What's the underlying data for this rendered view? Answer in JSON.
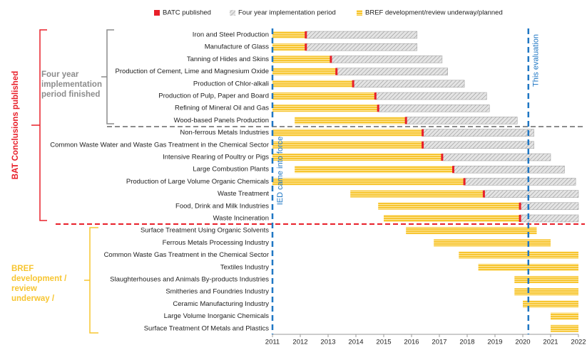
{
  "chart_data": {
    "type": "gantt",
    "legend": [
      {
        "name": "BATC published",
        "color": "#e8202a"
      },
      {
        "name": "Four year implementation period",
        "color": "#b3b3b3"
      },
      {
        "name": "BREF development/review underway/planned",
        "color": "#f7c530"
      }
    ],
    "groups": [
      {
        "label": "BAT Conclusions published",
        "color": "#e8202a"
      },
      {
        "label": [
          "Four year",
          "implementation",
          "period finished"
        ],
        "color": "#8c8c8c"
      },
      {
        "label": [
          "BREF",
          "development /",
          "review",
          "underway /"
        ],
        "color": "#f7c530"
      }
    ],
    "tasks": [
      {
        "name": "Iron and Steel Production",
        "start": 2011,
        "batc": 2012.2,
        "end": 2016.2
      },
      {
        "name": "Manufacture of Glass",
        "start": 2011,
        "batc": 2012.2,
        "end": 2016.2
      },
      {
        "name": "Tanning of Hides and Skins",
        "start": 2011,
        "batc": 2013.1,
        "end": 2017.1
      },
      {
        "name": "Production of Cement, Lime and Magnesium Oxide",
        "start": 2011,
        "batc": 2013.3,
        "end": 2017.3
      },
      {
        "name": "Production of Chlor-alkali",
        "start": 2011,
        "batc": 2013.9,
        "end": 2017.9
      },
      {
        "name": "Production of Pulp, Paper and Board",
        "start": 2011,
        "batc": 2014.7,
        "end": 2018.7
      },
      {
        "name": "Refining of Mineral Oil and Gas",
        "start": 2011,
        "batc": 2014.8,
        "end": 2018.8
      },
      {
        "name": "Wood-based Panels Production",
        "start": 2011.8,
        "batc": 2015.8,
        "end": 2019.8
      },
      {
        "name": "Non-ferrous Metals Industries",
        "start": 2011,
        "batc": 2016.4,
        "end": 2020.4
      },
      {
        "name": "Common Waste Water and Waste Gas Treatment in the Chemical Sector",
        "start": 2011,
        "batc": 2016.4,
        "end": 2020.4
      },
      {
        "name": "Intensive Rearing of Poultry or Pigs",
        "start": 2011,
        "batc": 2017.1,
        "end": 2021
      },
      {
        "name": "Large Combustion Plants",
        "start": 2011.8,
        "batc": 2017.5,
        "end": 2021.5
      },
      {
        "name": "Production of Large Volume Organic Chemicals",
        "start": 2011,
        "batc": 2017.9,
        "end": 2021.9
      },
      {
        "name": "Waste Treatment",
        "start": 2013.8,
        "batc": 2018.6,
        "end": 2022
      },
      {
        "name": "Food, Drink and Milk Industries",
        "start": 2014.8,
        "batc": 2019.9,
        "end": 2022
      },
      {
        "name": "Waste Incineration",
        "start": 2015,
        "batc": 2019.9,
        "end": 2022
      },
      {
        "name": "Surface Treatment Using Organic Solvents",
        "start": 2015.8,
        "batc": null,
        "end": 2020.5
      },
      {
        "name": "Ferrous Metals Processing Industry",
        "start": 2016.8,
        "batc": null,
        "end": 2021
      },
      {
        "name": "Common Waste Gas Treatment in the Chemical Sector",
        "start": 2017.7,
        "batc": null,
        "end": 2022
      },
      {
        "name": "Textiles Industry",
        "start": 2018.4,
        "batc": null,
        "end": 2022
      },
      {
        "name": "Slaughterhouses and Animals By-products Industries",
        "start": 2019.7,
        "batc": null,
        "end": 2022
      },
      {
        "name": "Smitheries and Foundries Industry",
        "start": 2019.7,
        "batc": null,
        "end": 2022
      },
      {
        "name": "Ceramic Manufacturing Industry",
        "start": 2020,
        "batc": null,
        "end": 2022
      },
      {
        "name": "Large Volume Inorganic Chemicals",
        "start": 2021,
        "batc": null,
        "end": 2022
      },
      {
        "name": "Surface Treatment Of Metals and Plastics",
        "start": 2021,
        "batc": null,
        "end": 2022
      }
    ],
    "reference_lines": [
      {
        "x": 2011,
        "label": "IED came into force"
      },
      {
        "x": 2020.2,
        "label": "This evaluation"
      }
    ],
    "reference_color": "#1f77c4",
    "xlim": [
      2011,
      2022
    ],
    "xticks": [
      2011,
      2012,
      2013,
      2014,
      2015,
      2016,
      2017,
      2018,
      2019,
      2020,
      2021,
      2022
    ]
  }
}
